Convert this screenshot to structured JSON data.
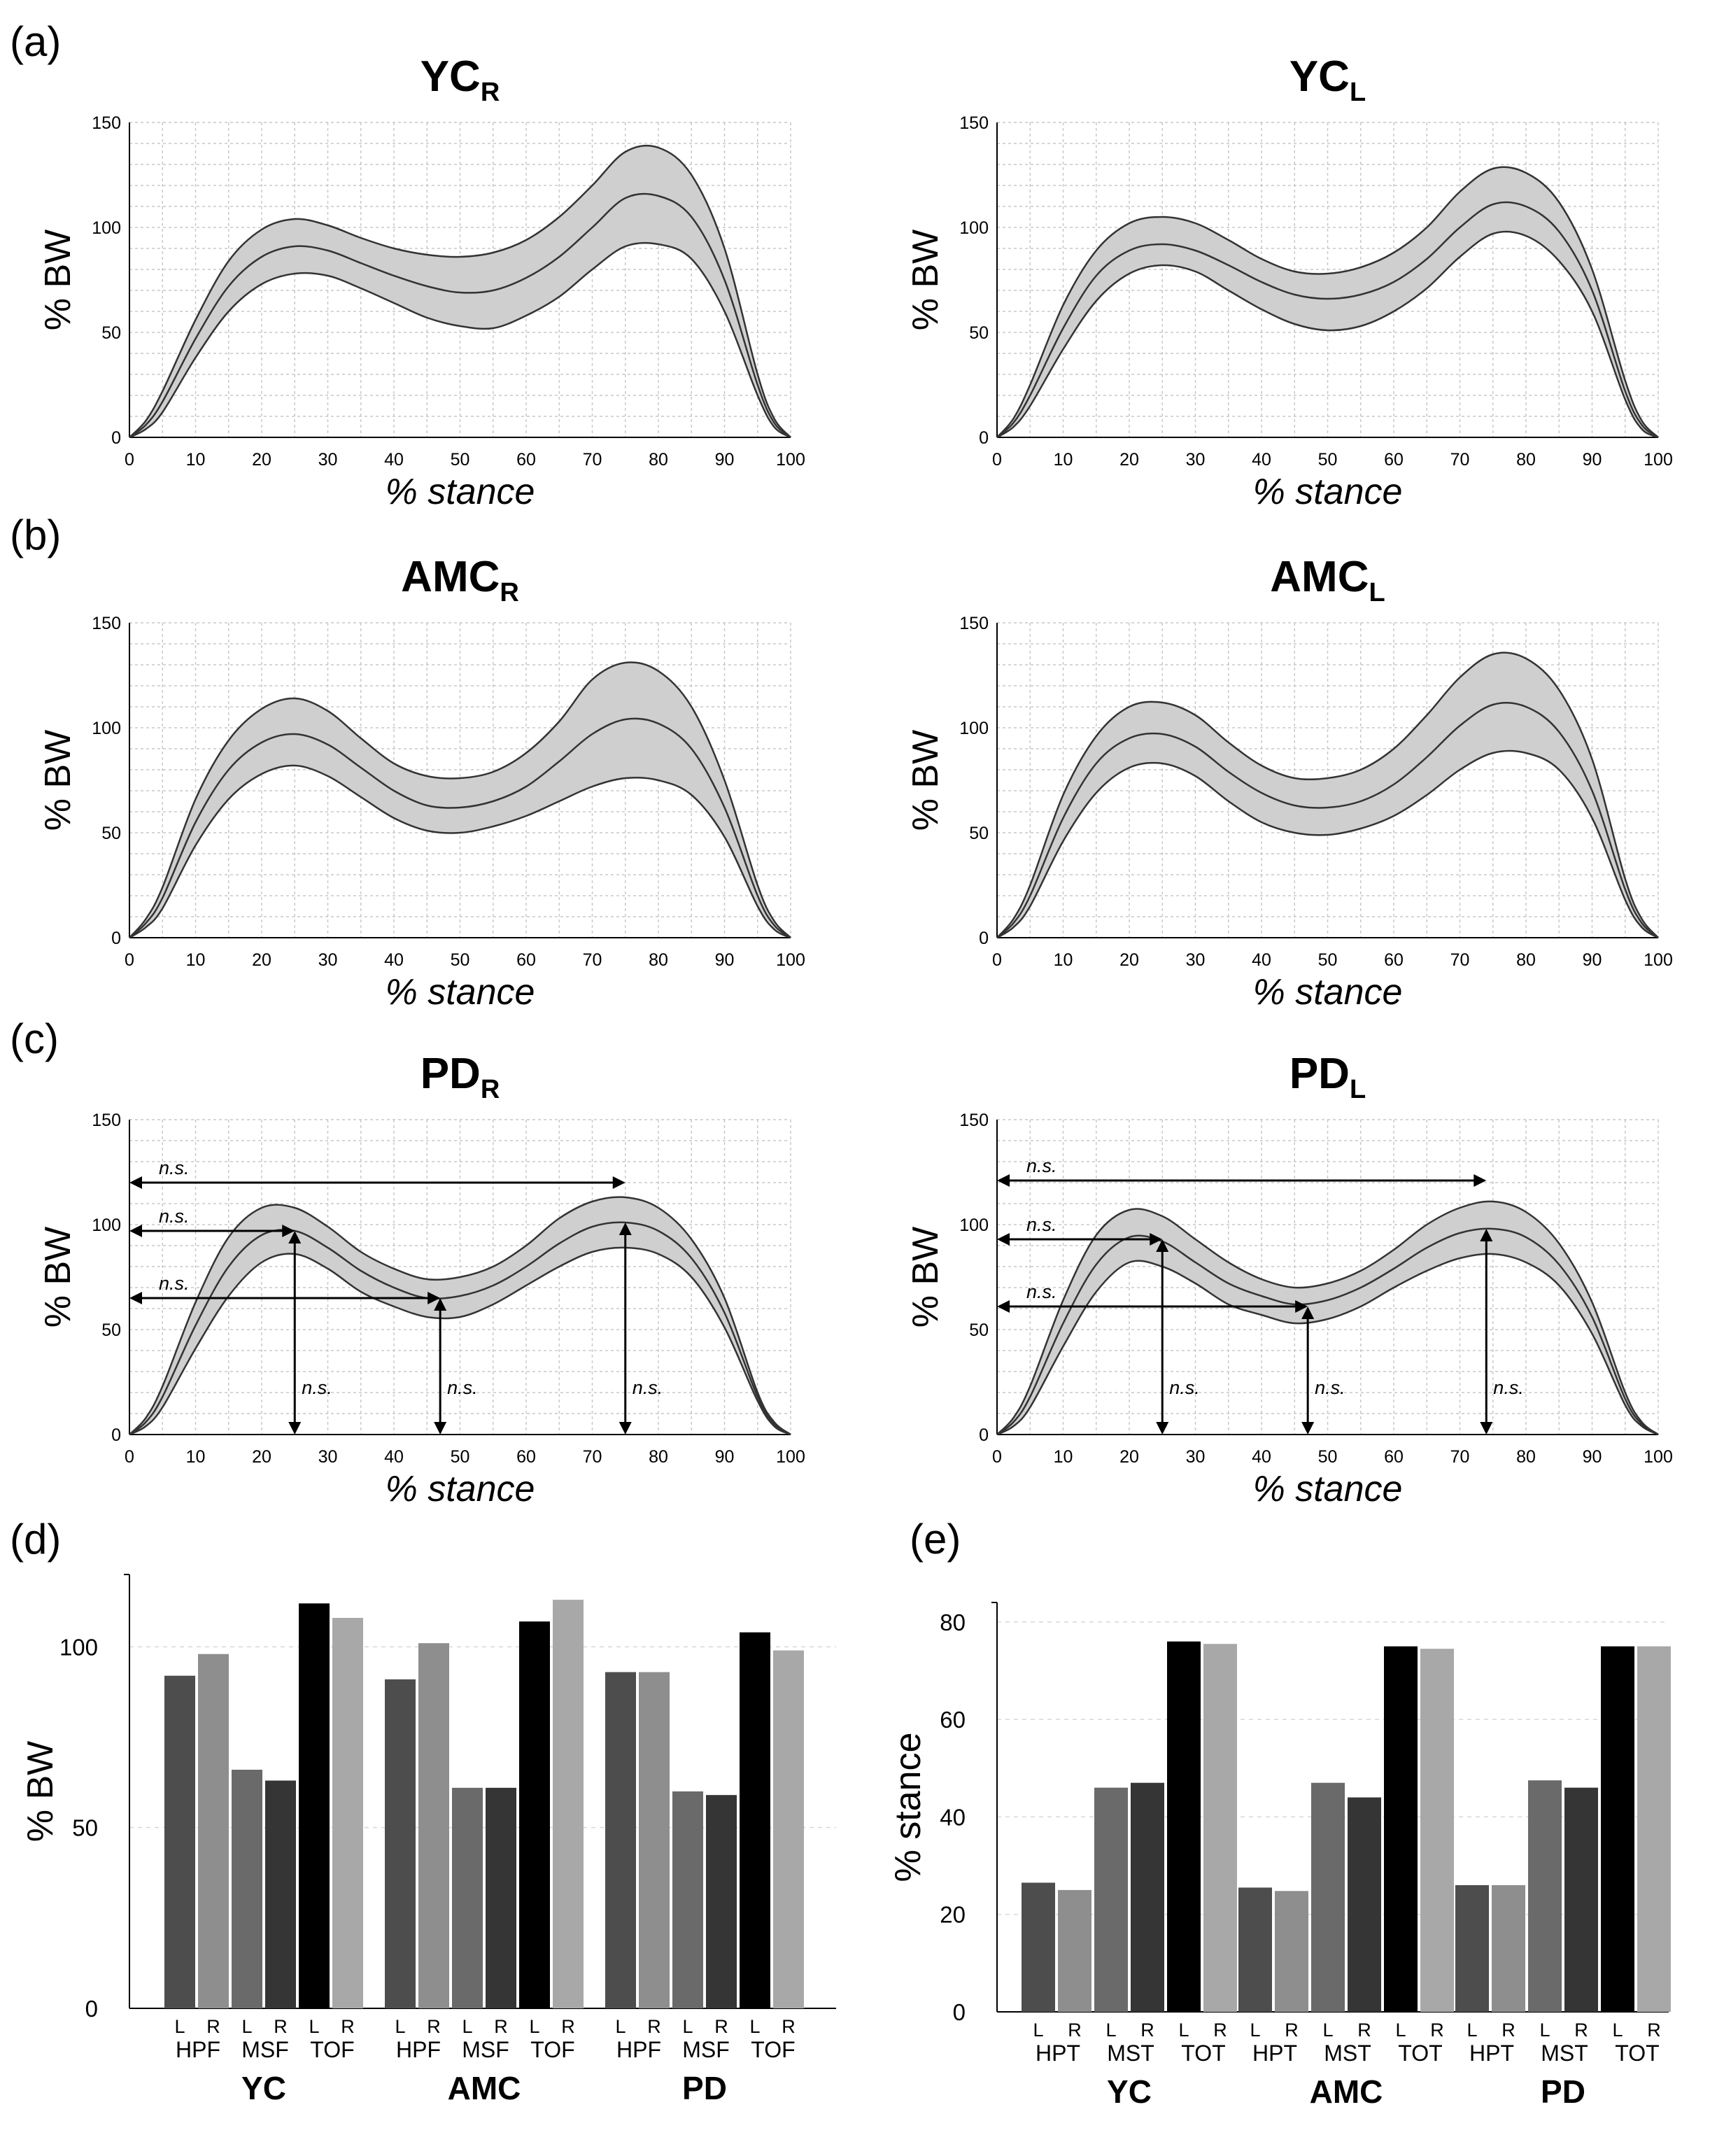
{
  "panels": {
    "a": {
      "letter": "(a)"
    },
    "b": {
      "letter": "(b)"
    },
    "c": {
      "letter": "(c)"
    },
    "d": {
      "letter": "(d)"
    },
    "e": {
      "letter": "(e)"
    }
  },
  "colors": {
    "band": "#cfcfcf",
    "line": "#333333",
    "bar_L_peak": "#4d4d4d",
    "bar_R_peak": "#8e8e8e",
    "bar_L_mid": "#6a6a6a",
    "bar_R_mid": "#353535",
    "bar_L_off": "#000000",
    "bar_R_off": "#a8a8a8"
  },
  "chart_data": [
    {
      "id": "yc_r",
      "type": "area",
      "panel": "a",
      "title": "YC",
      "title_sub": "R",
      "xlabel": "% stance",
      "ylabel": "% BW",
      "xlim": [
        0,
        100
      ],
      "ylim": [
        0,
        150
      ],
      "xticks": [
        "0",
        "10",
        "20",
        "30",
        "40",
        "50",
        "60",
        "70",
        "80",
        "90",
        "100"
      ],
      "yticks": [
        "0",
        "50",
        "100",
        "150"
      ],
      "x": [
        0,
        2.5,
        5,
        10,
        15,
        20,
        25,
        30,
        35,
        40,
        45,
        50,
        55,
        60,
        65,
        70,
        75,
        80,
        85,
        90,
        95,
        97.5,
        100
      ],
      "mean": [
        0,
        6,
        17,
        47,
        72,
        86,
        91,
        89,
        83,
        77,
        72,
        69,
        70,
        76,
        86,
        100,
        114,
        115,
        105,
        75,
        25,
        7,
        0
      ],
      "upper": [
        0,
        8,
        22,
        56,
        84,
        99,
        104,
        101,
        95,
        90,
        87,
        86,
        88,
        94,
        105,
        120,
        136,
        138,
        125,
        90,
        30,
        9,
        0
      ],
      "lower": [
        0,
        4,
        12,
        38,
        60,
        73,
        78,
        77,
        71,
        64,
        57,
        53,
        52,
        58,
        67,
        80,
        91,
        92,
        85,
        60,
        20,
        5,
        0
      ]
    },
    {
      "id": "yc_l",
      "type": "area",
      "panel": "a",
      "title": "YC",
      "title_sub": "L",
      "xlabel": "% stance",
      "ylabel": "% BW",
      "xlim": [
        0,
        100
      ],
      "ylim": [
        0,
        150
      ],
      "xticks": [
        "0",
        "10",
        "20",
        "30",
        "40",
        "50",
        "60",
        "70",
        "80",
        "90",
        "100"
      ],
      "yticks": [
        "0",
        "50",
        "100",
        "150"
      ],
      "x": [
        0,
        2.5,
        5,
        10,
        15,
        20,
        25,
        30,
        35,
        40,
        45,
        50,
        55,
        60,
        65,
        70,
        75,
        80,
        85,
        90,
        95,
        97.5,
        100
      ],
      "mean": [
        0,
        7,
        20,
        52,
        77,
        89,
        92,
        89,
        82,
        74,
        68,
        66,
        68,
        74,
        85,
        100,
        111,
        110,
        98,
        70,
        22,
        6,
        0
      ],
      "upper": [
        0,
        9,
        25,
        63,
        89,
        102,
        105,
        102,
        94,
        85,
        79,
        78,
        81,
        88,
        100,
        117,
        128,
        126,
        112,
        80,
        27,
        8,
        0
      ],
      "lower": [
        0,
        5,
        15,
        42,
        65,
        78,
        82,
        79,
        70,
        61,
        54,
        51,
        53,
        60,
        71,
        86,
        97,
        96,
        84,
        60,
        18,
        4,
        0
      ]
    },
    {
      "id": "amc_r",
      "type": "area",
      "panel": "b",
      "title": "AMC",
      "title_sub": "R",
      "xlabel": "% stance",
      "ylabel": "% BW",
      "xlim": [
        0,
        100
      ],
      "ylim": [
        0,
        150
      ],
      "xticks": [
        "0",
        "10",
        "20",
        "30",
        "40",
        "50",
        "60",
        "70",
        "80",
        "90",
        "100"
      ],
      "yticks": [
        "0",
        "50",
        "100",
        "150"
      ],
      "x": [
        0,
        2.5,
        5,
        10,
        15,
        20,
        25,
        30,
        35,
        40,
        45,
        50,
        55,
        60,
        65,
        70,
        75,
        80,
        85,
        90,
        95,
        97.5,
        100
      ],
      "mean": [
        0,
        7,
        19,
        55,
        80,
        93,
        97,
        92,
        81,
        70,
        63,
        62,
        65,
        72,
        84,
        97,
        104,
        102,
        90,
        62,
        20,
        6,
        0
      ],
      "upper": [
        0,
        9,
        24,
        66,
        94,
        109,
        114,
        108,
        95,
        83,
        77,
        76,
        79,
        88,
        103,
        123,
        131,
        127,
        110,
        75,
        25,
        8,
        0
      ],
      "lower": [
        0,
        5,
        14,
        44,
        66,
        78,
        82,
        77,
        67,
        57,
        51,
        50,
        53,
        58,
        65,
        72,
        76,
        75,
        68,
        48,
        15,
        4,
        0
      ]
    },
    {
      "id": "amc_l",
      "type": "area",
      "panel": "b",
      "title": "AMC",
      "title_sub": "L",
      "xlabel": "% stance",
      "ylabel": "% BW",
      "xlim": [
        0,
        100
      ],
      "ylim": [
        0,
        150
      ],
      "xticks": [
        "0",
        "10",
        "20",
        "30",
        "40",
        "50",
        "60",
        "70",
        "80",
        "90",
        "100"
      ],
      "yticks": [
        "0",
        "50",
        "100",
        "150"
      ],
      "x": [
        0,
        2.5,
        5,
        10,
        15,
        20,
        25,
        30,
        35,
        40,
        45,
        50,
        55,
        60,
        65,
        70,
        75,
        80,
        85,
        90,
        95,
        97.5,
        100
      ],
      "mean": [
        0,
        7,
        20,
        57,
        83,
        95,
        97,
        91,
        79,
        69,
        63,
        62,
        65,
        73,
        86,
        101,
        111,
        110,
        98,
        70,
        23,
        7,
        0
      ],
      "upper": [
        0,
        9,
        25,
        68,
        96,
        110,
        112,
        106,
        93,
        82,
        76,
        76,
        80,
        90,
        106,
        124,
        135,
        133,
        118,
        85,
        28,
        9,
        0
      ],
      "lower": [
        0,
        5,
        15,
        46,
        69,
        81,
        83,
        77,
        65,
        55,
        50,
        49,
        52,
        58,
        68,
        80,
        88,
        88,
        80,
        57,
        18,
        5,
        0
      ]
    },
    {
      "id": "pd_r",
      "type": "area",
      "panel": "c",
      "title": "PD",
      "title_sub": "R",
      "xlabel": "% stance",
      "ylabel": "% BW",
      "xlim": [
        0,
        100
      ],
      "ylim": [
        0,
        150
      ],
      "xticks": [
        "0",
        "10",
        "20",
        "30",
        "40",
        "50",
        "60",
        "70",
        "80",
        "90",
        "100"
      ],
      "yticks": [
        "0",
        "50",
        "100",
        "150"
      ],
      "x": [
        0,
        2.5,
        5,
        10,
        15,
        20,
        25,
        30,
        35,
        40,
        45,
        50,
        55,
        60,
        65,
        70,
        75,
        80,
        85,
        90,
        95,
        97.5,
        100
      ],
      "mean": [
        0,
        6,
        18,
        52,
        80,
        95,
        97,
        89,
        78,
        70,
        65,
        66,
        71,
        80,
        91,
        99,
        101,
        97,
        84,
        58,
        18,
        5,
        0
      ],
      "upper": [
        0,
        8,
        23,
        63,
        94,
        108,
        108,
        99,
        87,
        79,
        74,
        75,
        80,
        90,
        103,
        111,
        113,
        108,
        93,
        65,
        20,
        6,
        0
      ],
      "lower": [
        0,
        4,
        13,
        41,
        66,
        82,
        86,
        79,
        68,
        61,
        56,
        56,
        62,
        71,
        80,
        87,
        89,
        86,
        75,
        51,
        16,
        4,
        0
      ],
      "annotations": [
        {
          "type": "h",
          "from_x": 0,
          "to_x": 75,
          "y": 120,
          "label": "n.s."
        },
        {
          "type": "h",
          "from_x": 0,
          "to_x": 25,
          "y": 97,
          "label": "n.s."
        },
        {
          "type": "h",
          "from_x": 0,
          "to_x": 47,
          "y": 65,
          "label": "n.s."
        },
        {
          "type": "v",
          "x": 25,
          "from_y": 0,
          "to_y": 97,
          "label": "n.s."
        },
        {
          "type": "v",
          "x": 47,
          "from_y": 0,
          "to_y": 65,
          "label": "n.s."
        },
        {
          "type": "v",
          "x": 75,
          "from_y": 0,
          "to_y": 101,
          "label": "n.s."
        }
      ]
    },
    {
      "id": "pd_l",
      "type": "area",
      "panel": "c",
      "title": "PD",
      "title_sub": "L",
      "xlabel": "% stance",
      "ylabel": "% BW",
      "xlim": [
        0,
        100
      ],
      "ylim": [
        0,
        150
      ],
      "xticks": [
        "0",
        "10",
        "20",
        "30",
        "40",
        "50",
        "60",
        "70",
        "80",
        "90",
        "100"
      ],
      "yticks": [
        "0",
        "50",
        "100",
        "150"
      ],
      "x": [
        0,
        2.5,
        5,
        10,
        15,
        20,
        25,
        30,
        35,
        40,
        45,
        50,
        55,
        60,
        65,
        70,
        75,
        80,
        85,
        90,
        95,
        97.5,
        100
      ],
      "mean": [
        0,
        6,
        18,
        53,
        81,
        94,
        92,
        82,
        72,
        66,
        62,
        64,
        70,
        79,
        89,
        96,
        98,
        94,
        81,
        56,
        17,
        5,
        0
      ],
      "upper": [
        0,
        8,
        23,
        64,
        95,
        107,
        104,
        93,
        82,
        74,
        70,
        72,
        78,
        88,
        100,
        108,
        111,
        106,
        91,
        63,
        20,
        6,
        0
      ],
      "lower": [
        0,
        4,
        13,
        42,
        68,
        82,
        80,
        72,
        62,
        57,
        53,
        55,
        61,
        70,
        78,
        84,
        86,
        82,
        71,
        48,
        14,
        4,
        0
      ],
      "annotations": [
        {
          "type": "h",
          "from_x": 0,
          "to_x": 74,
          "y": 121,
          "label": "n.s."
        },
        {
          "type": "h",
          "from_x": 0,
          "to_x": 25,
          "y": 93,
          "label": "n.s."
        },
        {
          "type": "h",
          "from_x": 0,
          "to_x": 47,
          "y": 61,
          "label": "n.s."
        },
        {
          "type": "v",
          "x": 25,
          "from_y": 0,
          "to_y": 93,
          "label": "n.s."
        },
        {
          "type": "v",
          "x": 47,
          "from_y": 0,
          "to_y": 61,
          "label": "n.s."
        },
        {
          "type": "v",
          "x": 74,
          "from_y": 0,
          "to_y": 98,
          "label": "n.s."
        }
      ]
    },
    {
      "id": "bars_bw",
      "type": "bar",
      "panel": "d",
      "ylabel": "% BW",
      "ylim": [
        0,
        120
      ],
      "yticks": [
        "0",
        "50",
        "100"
      ],
      "groups": [
        "YC",
        "AMC",
        "PD"
      ],
      "subgroups": [
        "HPF",
        "MSF",
        "TOF"
      ],
      "sides": [
        "L",
        "R"
      ],
      "series": [
        {
          "name": "HPF L",
          "values": [
            92,
            91,
            93
          ]
        },
        {
          "name": "HPF R",
          "values": [
            98,
            101,
            93
          ]
        },
        {
          "name": "MSF L",
          "values": [
            66,
            61,
            60
          ]
        },
        {
          "name": "MSF R",
          "values": [
            63,
            61,
            59
          ]
        },
        {
          "name": "TOF L",
          "values": [
            112,
            107,
            104
          ]
        },
        {
          "name": "TOF R",
          "values": [
            108,
            113,
            99
          ]
        }
      ]
    },
    {
      "id": "bars_stance",
      "type": "bar",
      "panel": "e",
      "ylabel": "% stance",
      "ylim": [
        0,
        84
      ],
      "yticks": [
        "0",
        "20",
        "40",
        "60",
        "80"
      ],
      "groups": [
        "YC",
        "AMC",
        "PD"
      ],
      "subgroups": [
        "HPT",
        "MST",
        "TOT"
      ],
      "sides": [
        "L",
        "R"
      ],
      "series": [
        {
          "name": "HPT L",
          "values": [
            26.5,
            25.5,
            26
          ]
        },
        {
          "name": "HPT R",
          "values": [
            25,
            24.8,
            26
          ]
        },
        {
          "name": "MST L",
          "values": [
            46,
            47,
            47.5
          ]
        },
        {
          "name": "MST R",
          "values": [
            47,
            44,
            46
          ]
        },
        {
          "name": "TOT L",
          "values": [
            76,
            75,
            75
          ]
        },
        {
          "name": "TOT R",
          "values": [
            75.5,
            74.5,
            75
          ]
        }
      ]
    }
  ]
}
